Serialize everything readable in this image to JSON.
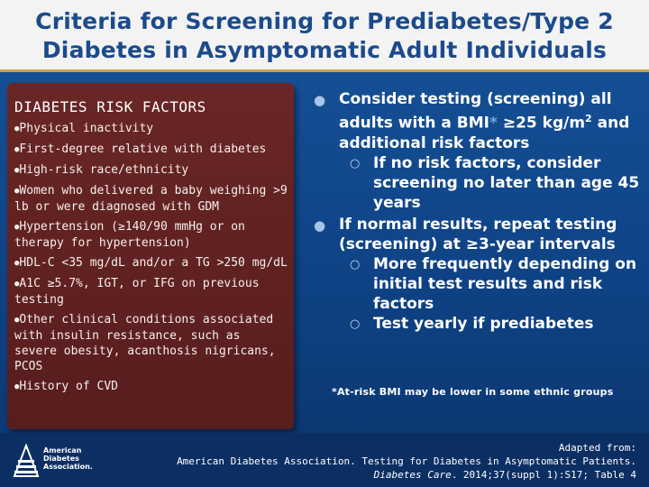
{
  "title": {
    "line1": "Criteria for Screening for Prediabetes/Type 2",
    "line2": "Diabetes in Asymptomatic Adult Individuals"
  },
  "risk_panel": {
    "heading": "DIABETES RISK FACTORS",
    "items": [
      "Physical inactivity",
      "First-degree relative with diabetes",
      "High-risk race/ethnicity",
      "Women who delivered a baby weighing >9 lb or were diagnosed with GDM",
      "Hypertension (≥140/90 mmHg or on therapy for hypertension)",
      "HDL-C <35 mg/dL and/or a TG >250 mg/dL",
      "A1C ≥5.7%, IGT, or IFG on previous testing",
      "Other clinical conditions associated with insulin resistance, such as severe obesity, acanthosis nigricans, PCOS",
      "History of CVD"
    ]
  },
  "main": {
    "bullet1": {
      "text_a": "Consider testing (screening) all adults with a BMI",
      "asterisk": "*",
      "text_b": " ≥25 kg/m",
      "sup": "2",
      "text_c": " and additional risk factors",
      "sub": "If no risk factors, consider screening no later than age 45 years"
    },
    "bullet2": {
      "text": "If normal results, repeat testing (screening) at ≥3-year intervals",
      "sub1": "More frequently depending on initial test results and risk factors",
      "sub2": "Test yearly if prediabetes"
    }
  },
  "footnote": "*At-risk BMI may be lower in some ethnic groups",
  "footer": {
    "logo_text": [
      "American",
      "Diabetes",
      "Association."
    ],
    "citation_line1": "Adapted from:",
    "citation_line2": "American Diabetes Association. Testing for Diabetes in Asymptomatic Patients.",
    "citation_journal": "Diabetes Care",
    "citation_line3_rest": ". 2014;37(suppl 1):S17; Table 4"
  },
  "colors": {
    "title_text": "#1b4b8c",
    "title_band": "#f3f3f3",
    "background": "#0f4386",
    "risk_panel": "#5e1f1f",
    "asterisk": "#6fa8e6"
  }
}
